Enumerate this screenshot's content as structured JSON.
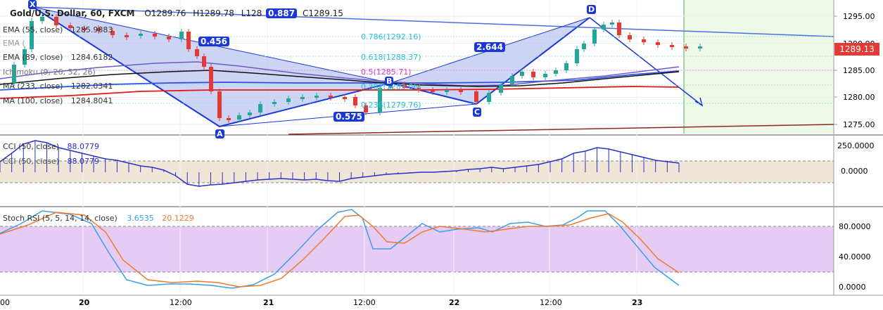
{
  "header": {
    "symbol": "Gold/U.S. Dollar, 60, FXCM",
    "open": "O1289.76",
    "high": "H1289.78",
    "low": "L128",
    "badge": "0.887",
    "close": "C1289.15"
  },
  "indicators": {
    "ema55": {
      "label": "EMA (55, close)",
      "value": "1285.9883"
    },
    "ema_b": {
      "label": "EMA (",
      "value": ""
    },
    "ema89": {
      "label": "EMA (89, close)",
      "value": "1284.6182"
    },
    "ichimoku": {
      "label": "Ichimoku (9, 26, 52, 26)"
    },
    "ma233": {
      "label": "MA (233, close)",
      "value": "1282.0341"
    },
    "ma100": {
      "label": "MA (100, close)",
      "value": "1284.8041"
    },
    "cci_a": {
      "label": "CCI (50, close)",
      "value": "88.0779"
    },
    "cci_b": {
      "label": "CCI (50, close)",
      "value": "88.0779"
    },
    "stoch": {
      "label": "Stoch RSI (5, 5, 14, 14, close)",
      "k": "3.6535",
      "d": "20.1229"
    }
  },
  "price_axis": {
    "ticks": [
      "1295.00",
      "1290.00",
      "1285.00",
      "1280.00",
      "1275.00"
    ],
    "current_price": "1289.13"
  },
  "cci_axis": {
    "ticks": [
      "250.0000",
      "0.0000"
    ]
  },
  "stoch_axis": {
    "ticks": [
      "80.0000",
      "40.0000",
      "0.0000"
    ]
  },
  "time_axis": {
    "labels": [
      "00",
      "20",
      "12:00",
      "21",
      "12:00",
      "22",
      "12:00",
      "23"
    ]
  },
  "pattern": {
    "points": [
      "X",
      "A",
      "B",
      "C",
      "D"
    ],
    "ratios": [
      "0.456",
      "2.644",
      "0.575"
    ],
    "fib_levels": [
      "0.786(1292.16)",
      "0.618(1288.37)",
      "0.5(1285.71)",
      "0.382(1283.06)",
      "0.236(1279.76)"
    ]
  },
  "colors": {
    "up": "#26a69a",
    "down": "#e53935",
    "pattern_line": "#1a37d8",
    "pattern_fill": "#b9c3f0",
    "ma233": "#2c52e8",
    "ma100": "#e51616",
    "ema55": "#6b5ac9",
    "ema89": "#111111",
    "cci": "#2b2fc9",
    "stoch_k": "#3a9ee6",
    "stoch_d": "#ef7a2d",
    "stoch_band": "#e6ccf5",
    "forecast_zone": "#eef8e6"
  },
  "chart_data": {
    "type": "line",
    "series": [
      {
        "name": "Gold/U.S. Dollar, 60, FXCM",
        "values": [
          1289.76,
          1289.78,
          1289.15,
          1289.13
        ]
      },
      {
        "name": "EMA (55, close)",
        "values": [
          1285.9883
        ]
      },
      {
        "name": "EMA (89, close)",
        "values": [
          1284.6182
        ]
      },
      {
        "name": "MA (233, close)",
        "values": [
          1282.0341
        ]
      },
      {
        "name": "MA (100, close)",
        "values": [
          1284.8041
        ]
      }
    ],
    "ylim": [
      1273,
      1297
    ],
    "grid": true,
    "legend": "top-left"
  }
}
